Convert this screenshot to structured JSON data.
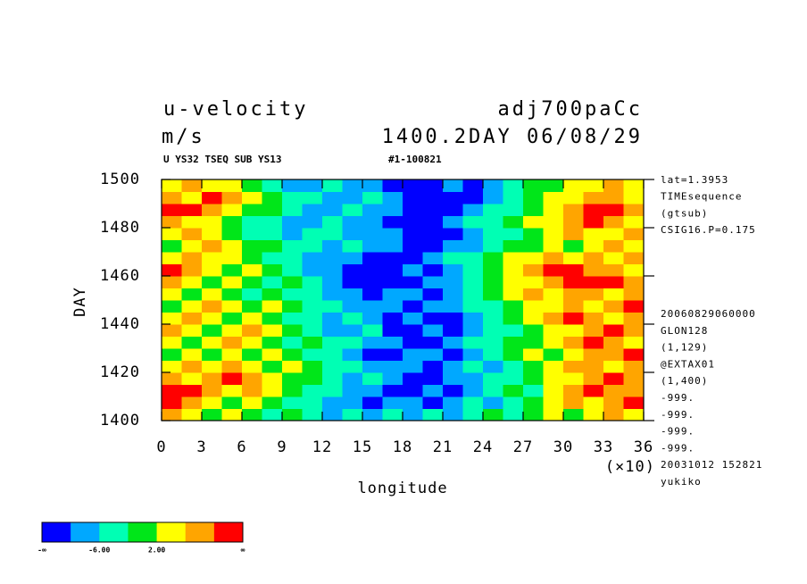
{
  "chart_data": {
    "type": "heatmap",
    "title": "u-velocity",
    "title_right": "adj700paCc",
    "subtitle": "m/s",
    "subtitle_right": "1400.2DAY 06/08/29",
    "note_left": "U YS32 TSEQ SUB YS13",
    "note_right": "#1-100821",
    "x_label": "longitude",
    "y_label": "DAY",
    "x_multiplier": "(×10)",
    "info_top": [
      "lat=1.3953",
      "TIMEsequence",
      "(gtsub)",
      "CSIG16.P=0.175"
    ],
    "info_bottom": [
      "20060829060000",
      "GLON128",
      "(1,129)",
      "@EXTAX01",
      "(1,400)",
      "-999.",
      "-999.",
      "-999.",
      "-999.",
      "20031012 152821",
      "yukiko"
    ],
    "xlim": [
      0,
      360
    ],
    "ylim": [
      1400,
      1500
    ],
    "xticks": [
      0,
      {
        "value": 30,
        "label": "3"
      },
      {
        "value": 60,
        "label": "6"
      },
      {
        "value": 90,
        "label": "9"
      },
      {
        "value": 120,
        "label": "12"
      },
      {
        "value": 150,
        "label": "15"
      },
      {
        "value": 180,
        "label": "18"
      },
      {
        "value": 210,
        "label": "21"
      },
      {
        "value": 240,
        "label": "24"
      },
      {
        "value": 270,
        "label": "27"
      },
      {
        "value": 300,
        "label": "30"
      },
      {
        "value": 330,
        "label": "33"
      },
      {
        "value": 360,
        "label": "36"
      }
    ],
    "yticks": [
      1400,
      1420,
      1440,
      1460,
      1480,
      1500
    ],
    "x": [
      7.5,
      22.5,
      37.5,
      52.5,
      67.5,
      82.5,
      97.5,
      112.5,
      127.5,
      142.5,
      157.5,
      172.5,
      187.5,
      202.5,
      217.5,
      232.5,
      247.5,
      262.5,
      277.5,
      292.5,
      307.5,
      322.5,
      337.5,
      352.5
    ],
    "y": [
      1402.5,
      1407.5,
      1412.5,
      1417.5,
      1422.5,
      1427.5,
      1432.5,
      1437.5,
      1442.5,
      1447.5,
      1452.5,
      1457.5,
      1462.5,
      1467.5,
      1472.5,
      1477.5,
      1482.5,
      1487.5,
      1492.5,
      1497.5
    ],
    "z": [
      [
        8,
        4,
        0,
        4,
        0,
        -4,
        0,
        -4,
        -8,
        -4,
        -8,
        -4,
        -8,
        -4,
        -8,
        -4,
        0,
        -4,
        0,
        4,
        0,
        4,
        8,
        4
      ],
      [
        12,
        8,
        4,
        0,
        4,
        0,
        -4,
        -4,
        -8,
        -8,
        -12,
        -8,
        -8,
        -12,
        -8,
        -4,
        -8,
        -4,
        0,
        4,
        8,
        4,
        8,
        12
      ],
      [
        12,
        12,
        8,
        4,
        8,
        4,
        0,
        -4,
        -4,
        -8,
        -8,
        -12,
        -12,
        -8,
        -12,
        -8,
        -4,
        0,
        -4,
        4,
        8,
        12,
        8,
        8
      ],
      [
        8,
        4,
        8,
        12,
        8,
        4,
        0,
        0,
        -4,
        -8,
        -4,
        -8,
        -12,
        -12,
        -8,
        -8,
        -4,
        -4,
        0,
        4,
        4,
        8,
        12,
        8
      ],
      [
        4,
        8,
        4,
        8,
        4,
        0,
        4,
        0,
        -4,
        -4,
        -8,
        -8,
        -8,
        -12,
        -8,
        -4,
        -8,
        -4,
        0,
        4,
        8,
        8,
        4,
        8
      ],
      [
        0,
        4,
        0,
        4,
        0,
        4,
        0,
        -4,
        -4,
        -8,
        -12,
        -12,
        -8,
        -8,
        -12,
        -8,
        -4,
        0,
        4,
        0,
        4,
        8,
        8,
        12
      ],
      [
        4,
        0,
        4,
        8,
        4,
        0,
        -4,
        0,
        -4,
        -4,
        -8,
        -8,
        -12,
        -12,
        -8,
        -4,
        -4,
        0,
        0,
        4,
        8,
        12,
        8,
        4
      ],
      [
        8,
        4,
        0,
        4,
        8,
        4,
        0,
        -4,
        -8,
        -8,
        -4,
        -12,
        -12,
        -8,
        -12,
        -8,
        -4,
        -4,
        0,
        4,
        4,
        8,
        12,
        8
      ],
      [
        4,
        8,
        4,
        0,
        4,
        0,
        -4,
        -4,
        -8,
        -4,
        -8,
        -12,
        -8,
        -12,
        -12,
        -8,
        -4,
        0,
        4,
        8,
        12,
        8,
        4,
        8
      ],
      [
        0,
        4,
        8,
        4,
        0,
        4,
        0,
        -4,
        -4,
        -8,
        -8,
        -8,
        -12,
        -8,
        -8,
        -4,
        -4,
        0,
        4,
        4,
        8,
        4,
        8,
        12
      ],
      [
        4,
        0,
        4,
        0,
        -4,
        0,
        -4,
        -4,
        -8,
        -8,
        -12,
        -8,
        -8,
        -12,
        -8,
        -4,
        0,
        4,
        8,
        4,
        8,
        8,
        4,
        8
      ],
      [
        8,
        4,
        0,
        4,
        0,
        -4,
        0,
        -4,
        -8,
        -12,
        -12,
        -12,
        -12,
        -8,
        -8,
        -4,
        0,
        4,
        4,
        8,
        12,
        12,
        12,
        8
      ],
      [
        12,
        8,
        4,
        0,
        4,
        0,
        -4,
        -8,
        -8,
        -12,
        -12,
        -12,
        -8,
        -12,
        -8,
        -4,
        0,
        4,
        8,
        12,
        12,
        8,
        8,
        4
      ],
      [
        4,
        8,
        4,
        4,
        0,
        -4,
        -4,
        -8,
        -8,
        -8,
        -12,
        -12,
        -12,
        -8,
        -4,
        -4,
        0,
        4,
        4,
        8,
        4,
        8,
        4,
        8
      ],
      [
        0,
        4,
        8,
        4,
        0,
        0,
        -4,
        -4,
        -8,
        -4,
        -8,
        -8,
        -12,
        -12,
        -8,
        -8,
        -4,
        0,
        0,
        4,
        0,
        4,
        8,
        4
      ],
      [
        4,
        8,
        4,
        0,
        -4,
        -4,
        -8,
        -4,
        -4,
        -8,
        -8,
        -8,
        -12,
        -12,
        -12,
        -8,
        -4,
        -4,
        0,
        4,
        8,
        4,
        4,
        8
      ],
      [
        8,
        4,
        4,
        0,
        -4,
        -4,
        -8,
        -8,
        -4,
        -8,
        -8,
        -12,
        -12,
        -12,
        -8,
        -4,
        -4,
        0,
        4,
        4,
        8,
        12,
        8,
        4
      ],
      [
        12,
        12,
        8,
        4,
        0,
        0,
        -4,
        -8,
        -8,
        -4,
        -8,
        -8,
        -12,
        -12,
        -12,
        -8,
        -4,
        -4,
        0,
        4,
        8,
        12,
        12,
        8
      ],
      [
        8,
        4,
        12,
        8,
        4,
        0,
        -4,
        -4,
        -8,
        -8,
        -4,
        -8,
        -12,
        -12,
        -12,
        -12,
        -8,
        -4,
        0,
        4,
        4,
        8,
        8,
        4
      ],
      [
        4,
        8,
        4,
        4,
        0,
        -4,
        -8,
        -8,
        -4,
        -8,
        -8,
        -12,
        -12,
        -12,
        -8,
        -12,
        -8,
        -4,
        0,
        0,
        4,
        4,
        8,
        4
      ]
    ],
    "colorbar": {
      "bounds": [
        -10,
        -6,
        -2,
        2,
        6,
        10
      ],
      "colors": [
        "#0000ff",
        "#00a8ff",
        "#00ffb4",
        "#00e619",
        "#ffff00",
        "#ffa500",
        "#ff0000"
      ],
      "ticks": [
        {
          "value": -6,
          "label": "-6.00"
        },
        {
          "value": 2,
          "label": "2.00"
        }
      ],
      "min_label": "-∞",
      "max_label": "∞"
    }
  }
}
